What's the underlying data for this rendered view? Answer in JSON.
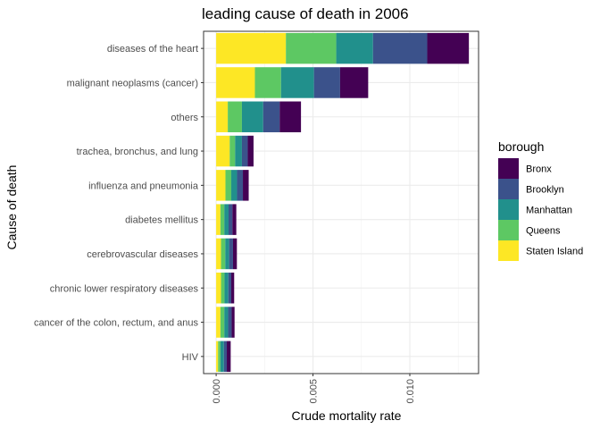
{
  "chart_data": {
    "type": "bar",
    "orientation": "horizontal",
    "stacked": true,
    "title": "leading cause of death in 2006",
    "xlabel": "Crude mortality rate",
    "ylabel": "Cause of death",
    "xlim": [
      -0.00065,
      0.01355
    ],
    "xticks": [
      0.0,
      0.005,
      0.01
    ],
    "xtick_labels": [
      "0.000",
      "0.005",
      "0.010"
    ],
    "grid": true,
    "legend_title": "borough",
    "legend_position": "right",
    "categories": [
      "diseases of the heart",
      "malignant neoplasms (cancer)",
      "others",
      "trachea, bronchus, and lung",
      "influenza and pneumonia",
      "diabetes mellitus",
      "cerebrovascular diseases",
      "chronic lower respiratory diseases",
      "cancer of the colon, rectum, and anus",
      "HIV"
    ],
    "series": [
      {
        "name": "Staten Island",
        "color": "#FDE725",
        "values": [
          0.0036,
          0.002,
          0.0006,
          0.0007,
          0.00048,
          0.00022,
          0.00025,
          0.00025,
          0.00022,
          0.0001
        ]
      },
      {
        "name": "Queens",
        "color": "#5DC863",
        "values": [
          0.0026,
          0.00135,
          0.00073,
          0.00028,
          0.0003,
          0.0002,
          0.00022,
          0.00018,
          0.0002,
          0.00012
        ]
      },
      {
        "name": "Manhattan",
        "color": "#21908C",
        "values": [
          0.0019,
          0.0017,
          0.0011,
          0.00035,
          0.0003,
          0.00022,
          0.0002,
          0.0002,
          0.0002,
          0.00018
        ]
      },
      {
        "name": "Brooklyn",
        "color": "#3B528B",
        "values": [
          0.0028,
          0.00135,
          0.00085,
          0.0003,
          0.0003,
          0.0002,
          0.0002,
          0.00015,
          0.00018,
          0.00015
        ]
      },
      {
        "name": "Bronx",
        "color": "#440154",
        "values": [
          0.00215,
          0.00145,
          0.0011,
          0.0003,
          0.0003,
          0.0002,
          0.0002,
          0.00015,
          0.00015,
          0.0002
        ]
      }
    ],
    "legend_order": [
      "Bronx",
      "Brooklyn",
      "Manhattan",
      "Queens",
      "Staten Island"
    ]
  }
}
